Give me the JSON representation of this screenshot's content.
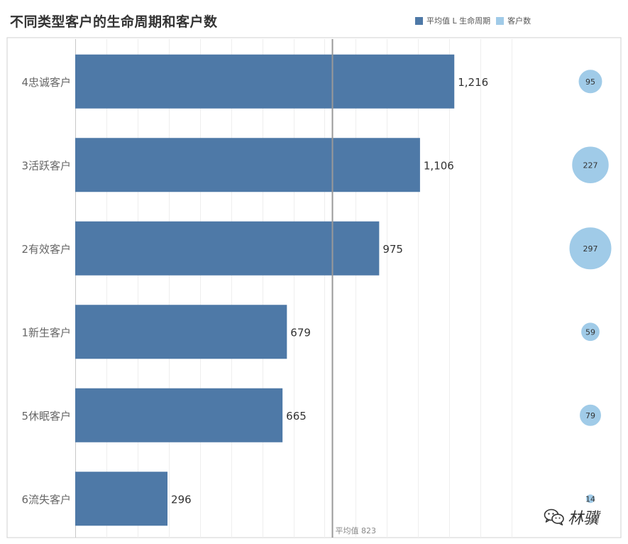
{
  "header": {
    "title": "不同类型客户的生命周期和客户数"
  },
  "legend": {
    "items": [
      {
        "label": "平均值 L 生命周期",
        "color": "#4e79a7"
      },
      {
        "label": "客户数",
        "color": "#a0cbe8"
      }
    ]
  },
  "watermark": {
    "text": "林骥"
  },
  "chart_data": {
    "type": "bar",
    "orientation": "horizontal",
    "categories": [
      "4忠诚客户",
      "3活跃客户",
      "2有效客户",
      "1新生客户",
      "5休眠客户",
      "6流失客户"
    ],
    "series": [
      {
        "name": "平均值 L 生命周期",
        "values": [
          1216,
          1106,
          975,
          679,
          665,
          296
        ],
        "labels": [
          "1,216",
          "1,106",
          "975",
          "679",
          "665",
          "296"
        ],
        "color": "#4e79a7"
      },
      {
        "name": "客户数",
        "type": "bubble",
        "values": [
          95,
          227,
          297,
          59,
          79,
          14
        ],
        "color": "#a0cbe8"
      }
    ],
    "reference_line": {
      "value": 823,
      "label": "平均值 823"
    },
    "xlim": [
      0,
      1500
    ],
    "grid": true
  }
}
